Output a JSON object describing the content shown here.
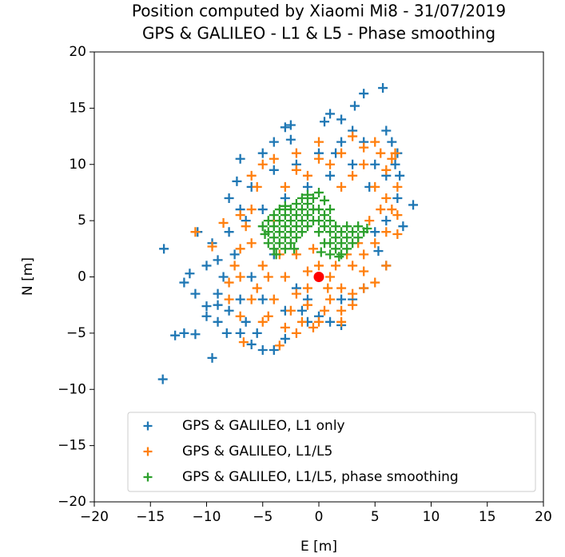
{
  "chart_data": {
    "type": "scatter",
    "title": "Position computed by Xiaomi Mi8 - 31/07/2019",
    "subtitle": "GPS & GALILEO - L1 & L5 - Phase smoothing",
    "x_label": "E [m]",
    "y_label": "N [m]",
    "xlim": [
      -20,
      20
    ],
    "ylim": [
      -20,
      20
    ],
    "xticks": [
      {
        "value": -20,
        "label": "−20"
      },
      {
        "value": -15,
        "label": "−15"
      },
      {
        "value": -10,
        "label": "−10"
      },
      {
        "value": -5,
        "label": "−5"
      },
      0,
      5,
      10,
      15,
      20
    ],
    "yticks": [
      {
        "value": -20,
        "label": "−20"
      },
      {
        "value": -15,
        "label": "−15"
      },
      {
        "value": -10,
        "label": "−10"
      },
      {
        "value": -5,
        "label": "−5"
      },
      0,
      5,
      10,
      15,
      20
    ],
    "grid": false,
    "legend": "lower center",
    "series": [
      {
        "name": "GPS & GALILEO, L1 only",
        "color": "#1f77b4",
        "x": [
          -13.9,
          -13.8,
          -12.8,
          -12,
          -11,
          -11.5,
          -10.8,
          -9.5,
          5.7,
          4,
          3.2,
          8.4,
          7.5,
          5.3,
          2,
          -5,
          -9,
          -10,
          -8,
          -7,
          -5,
          -3,
          -2.5,
          0.5,
          1,
          2,
          6,
          6.5,
          7,
          -12,
          -10,
          -9.5,
          -7,
          -6,
          -4,
          -1,
          0,
          1,
          3,
          4,
          6,
          -8,
          -9,
          -7,
          -8.5,
          -7.5,
          -6.5,
          -6,
          -4,
          -2,
          0,
          2,
          4,
          5,
          6,
          7,
          -5,
          -3,
          -2,
          -6,
          -4,
          -8,
          -5,
          -3,
          -1,
          1,
          3,
          4.5,
          6,
          5,
          -10,
          -11,
          -9,
          -7,
          -4,
          1.5,
          6.8,
          -1.5,
          2,
          -6.5,
          -8.2,
          -9,
          -7.3,
          -2.5,
          3,
          7.2,
          -5.5,
          -3,
          -1
        ],
        "values": [
          -9.1,
          2.5,
          -5.2,
          -5,
          -5.1,
          0.3,
          4,
          -7.2,
          16.8,
          16.3,
          15.2,
          6.4,
          4.5,
          2.3,
          -4.3,
          -6.5,
          -1.5,
          -2.6,
          7,
          10.5,
          11,
          13.3,
          13.5,
          13.8,
          14.5,
          14,
          13,
          12,
          11,
          -0.5,
          1,
          3,
          -5,
          -6,
          -6.5,
          -4,
          -3.5,
          -4,
          -2,
          -1,
          1,
          -3,
          -4,
          -2,
          0,
          2,
          5,
          8,
          9.5,
          10,
          11,
          12,
          12,
          10,
          9,
          7,
          -2,
          -3,
          -1,
          0,
          2,
          4,
          6,
          7,
          8,
          9,
          10,
          8,
          5,
          4,
          -3.5,
          -1.5,
          1.5,
          6,
          12,
          11,
          10,
          -3,
          -2,
          -4,
          -5,
          -2.5,
          8.5,
          12.2,
          13,
          9,
          -5,
          -5.5,
          -2
        ]
      },
      {
        "name": "GPS & GALILEO, L1/L5",
        "color": "#ff7f0e",
        "x": [
          -11,
          -8.5,
          -9.5,
          -7,
          -6.7,
          -3.5,
          -2,
          0,
          2,
          4,
          6,
          7,
          7,
          6.5,
          5,
          3,
          0,
          -2,
          -5,
          -6,
          -7,
          -8,
          -5,
          -4,
          -3,
          -2,
          -1,
          0,
          1,
          2,
          3,
          4,
          5,
          6,
          -6,
          -5,
          -4,
          -3,
          -1,
          1,
          2,
          3,
          4,
          5,
          6,
          -6,
          -7,
          -4.5,
          -2.5,
          -1,
          1,
          3,
          5,
          -5.5,
          -4,
          -2,
          0,
          2,
          4,
          6,
          -6.5,
          -7.5,
          -8,
          -3,
          -1.5,
          0.5,
          1.5,
          2.5,
          -0.5,
          3.5,
          4.5,
          5.5,
          6.5,
          -1,
          0.8,
          -2,
          -3.5,
          -4.5,
          -5.5,
          -7,
          -6,
          6.8,
          5.5,
          2,
          -0.5,
          3,
          4,
          7
        ],
        "values": [
          4,
          4.8,
          2.7,
          2.5,
          -5.8,
          -6.1,
          -5,
          -4,
          -3,
          -1,
          1,
          3.8,
          8,
          10.5,
          12,
          12.5,
          12,
          11,
          10,
          6,
          0,
          -2,
          -4,
          -2,
          0,
          2,
          -1,
          1,
          0,
          -1,
          1,
          2,
          3,
          4,
          3,
          1,
          5,
          8,
          9,
          10,
          8,
          9,
          10,
          8,
          7,
          -2,
          -3.5,
          -3.5,
          -3,
          -2.5,
          -2,
          -1.5,
          -0.5,
          8,
          10.5,
          9.5,
          10.5,
          11,
          11.5,
          9.5,
          4.5,
          1,
          -0.5,
          -4.5,
          -4,
          -3,
          1,
          2,
          2.5,
          3,
          5,
          6,
          6,
          0.5,
          -1,
          -1.5,
          2,
          0,
          -1,
          5.5,
          9,
          11,
          11,
          -4,
          -4.5,
          -2.5,
          0.5,
          5.5
        ]
      },
      {
        "name": "GPS & GALILEO, L1/L5, phase smoothing",
        "color": "#2ca02c",
        "x": [
          -5,
          -4.5,
          -4.5,
          -4.5,
          -4,
          -4,
          -4,
          -4,
          -3.5,
          -3.5,
          -3.5,
          -3.5,
          -3,
          -3,
          -3,
          -3,
          -3,
          -2.5,
          -2.5,
          -2.5,
          -2.5,
          -2,
          -2,
          -2,
          -2,
          -1.5,
          -1.5,
          -1.5,
          -1.5,
          -1,
          -1,
          -1,
          -1,
          -0.5,
          -0.5,
          -0.5,
          0,
          0,
          0,
          0,
          0.5,
          0.5,
          0.5,
          0.5,
          1,
          1,
          1,
          1,
          1,
          1.5,
          1.5,
          1.5,
          2,
          2,
          2,
          2.5,
          2.5,
          2.5,
          3,
          3,
          3.5,
          3.5,
          4,
          4.3,
          -4.8,
          -3.8,
          -2.2,
          0.2,
          1.8
        ],
        "values": [
          4.5,
          3,
          4,
          5,
          2.5,
          3.5,
          4.5,
          5.5,
          3,
          4,
          5,
          6,
          2.5,
          3.5,
          4.5,
          5.5,
          6.3,
          3,
          4,
          5,
          6,
          3.5,
          4.5,
          5.5,
          6.5,
          4,
          5,
          6,
          7,
          4.5,
          5.5,
          6.5,
          7.3,
          5,
          6,
          7,
          4,
          5,
          6,
          7.5,
          3,
          4.5,
          5.5,
          6.8,
          2,
          3,
          4,
          5,
          6,
          2.5,
          3.5,
          4.5,
          2,
          3,
          4,
          2.5,
          3.5,
          4.5,
          3,
          4,
          3.5,
          4.5,
          4,
          4.3,
          3.8,
          2,
          2.5,
          2.2,
          1.8
        ]
      }
    ],
    "reference_point": {
      "x": 0,
      "y": 0,
      "color": "red"
    }
  }
}
